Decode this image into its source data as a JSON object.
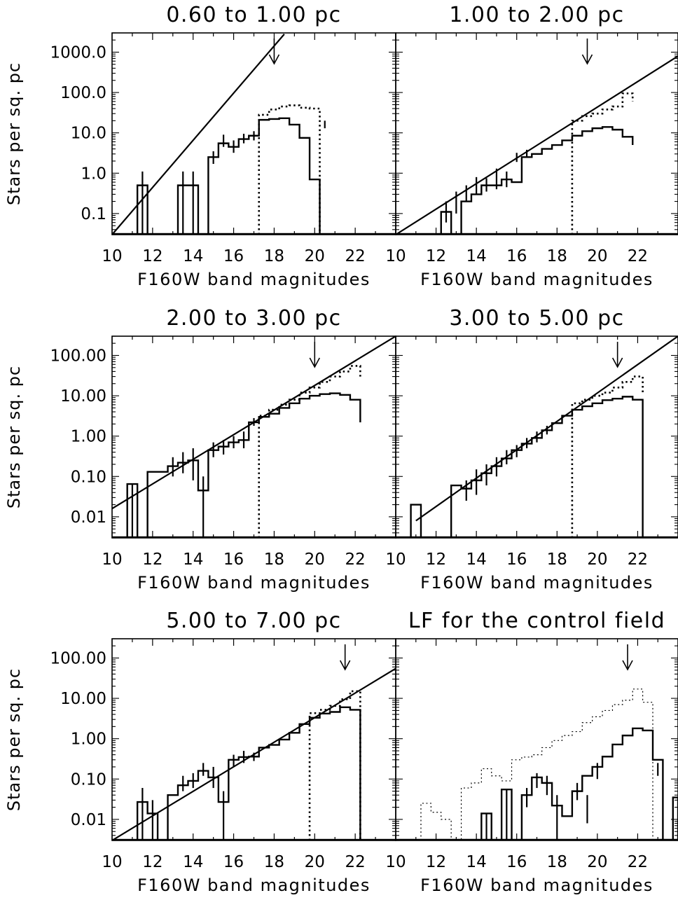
{
  "figure": {
    "ylabel": "Stars per sq. pc",
    "xlabel": "F160W band magnitudes"
  },
  "chart_data": [
    {
      "type": "line",
      "panel": "top-left",
      "title": "0.60 to 1.00 pc",
      "xlabel": "F160W band magnitudes",
      "ylabel": "Stars per sq. pc",
      "xlim": [
        10,
        24
      ],
      "ylim": [
        0.03,
        3000
      ],
      "yscale": "log",
      "xticks": [
        10,
        12,
        14,
        16,
        18,
        20,
        22
      ],
      "yticks": [
        0.1,
        1,
        10,
        100,
        1000
      ],
      "ytick_labels": [
        "0.1",
        "1.0",
        "10.0",
        "100.0",
        "1000.0"
      ],
      "arrow_mag": 18.0,
      "series": [
        {
          "style": "solid-histogram",
          "edges": [
            11.25,
            11.75,
            13.25,
            13.75,
            14.25,
            14.75,
            15.25,
            15.75,
            16.25,
            16.75,
            17.25,
            17.75,
            18.25,
            18.75,
            19.25,
            19.75,
            20.25
          ],
          "values": [
            0.5,
            0.03,
            0.5,
            0.5,
            0.03,
            2.5,
            5.5,
            4.5,
            7.0,
            8.5,
            21,
            22,
            23,
            16,
            7.5,
            0.7
          ]
        },
        {
          "style": "dotted-histogram",
          "edges": [
            17.25,
            17.75,
            18.25,
            18.75,
            19.25,
            19.75,
            20.25
          ],
          "values": [
            28,
            38,
            45,
            48,
            42,
            40
          ]
        },
        {
          "style": "fit-line",
          "x": [
            10,
            18.5
          ],
          "y": [
            0.03,
            2800
          ]
        }
      ],
      "error_bars": [
        {
          "x": 11.5,
          "y_low": 0.03,
          "y_high": 1.1
        },
        {
          "x": 13.5,
          "y_low": 0.03,
          "y_high": 1.1
        },
        {
          "x": 14.0,
          "y_low": 0.03,
          "y_high": 1.1
        },
        {
          "x": 15.0,
          "y_low": 1.7,
          "y_high": 3.5
        },
        {
          "x": 15.5,
          "y_low": 4.5,
          "y_high": 9.0
        },
        {
          "x": 16.0,
          "y_low": 3.2,
          "y_high": 6.5
        },
        {
          "x": 16.5,
          "y_low": 5.5,
          "y_high": 9.5
        },
        {
          "x": 17.0,
          "y_low": 6.5,
          "y_high": 11
        },
        {
          "x": 20.5,
          "y_low": 13,
          "y_high": 20
        }
      ]
    },
    {
      "type": "line",
      "panel": "top-right",
      "title": "1.00 to 2.00 pc",
      "xlabel": "F160W band magnitudes",
      "ylabel": "",
      "xlim": [
        10,
        24
      ],
      "ylim": [
        0.03,
        3000
      ],
      "yscale": "log",
      "xticks": [
        10,
        12,
        14,
        16,
        18,
        20,
        22
      ],
      "yticks": [],
      "ytick_labels": [],
      "arrow_mag": 19.5,
      "series": [
        {
          "style": "solid-histogram",
          "edges": [
            12.25,
            12.75,
            13.25,
            13.75,
            14.25,
            14.75,
            15.25,
            15.75,
            16.25,
            16.75,
            17.25,
            17.75,
            18.25,
            18.75,
            19.25,
            19.75,
            20.25,
            20.75,
            21.25,
            21.75
          ],
          "values": [
            0.11,
            0.03,
            0.2,
            0.3,
            0.5,
            0.5,
            0.7,
            0.6,
            2.5,
            3.0,
            4.0,
            5.0,
            6.5,
            8.5,
            11,
            13,
            14,
            12,
            8,
            5
          ]
        },
        {
          "style": "dotted-histogram",
          "edges": [
            18.75,
            19.25,
            19.75,
            20.25,
            20.75,
            21.25,
            21.75
          ],
          "values": [
            20,
            26,
            30,
            38,
            45,
            95,
            60
          ]
        },
        {
          "style": "fit-line",
          "x": [
            10,
            24
          ],
          "y": [
            0.03,
            800
          ]
        }
      ],
      "error_bars": [
        {
          "x": 12.5,
          "y_low": 0.06,
          "y_high": 0.2
        },
        {
          "x": 13.0,
          "y_low": 0.1,
          "y_high": 0.35
        },
        {
          "x": 13.5,
          "y_low": 0.2,
          "y_high": 0.5
        },
        {
          "x": 14.0,
          "y_low": 0.3,
          "y_high": 0.8
        },
        {
          "x": 14.5,
          "y_low": 0.35,
          "y_high": 0.75
        },
        {
          "x": 15.0,
          "y_low": 0.4,
          "y_high": 1.3
        },
        {
          "x": 15.5,
          "y_low": 0.45,
          "y_high": 1.1
        },
        {
          "x": 16.0,
          "y_low": 1.9,
          "y_high": 3.2
        },
        {
          "x": 16.5,
          "y_low": 2.4,
          "y_high": 3.8
        }
      ]
    },
    {
      "type": "line",
      "panel": "middle-left",
      "title": "2.00 to 3.00 pc",
      "xlabel": "F160W band magnitudes",
      "ylabel": "Stars per sq. pc",
      "xlim": [
        10,
        24
      ],
      "ylim": [
        0.003,
        300
      ],
      "yscale": "log",
      "xticks": [
        10,
        12,
        14,
        16,
        18,
        20,
        22
      ],
      "yticks": [
        0.01,
        0.1,
        1,
        10,
        100
      ],
      "ytick_labels": [
        "0.01",
        "0.10",
        "1.00",
        "10.00",
        "100.00"
      ],
      "arrow_mag": 20.0,
      "series": [
        {
          "style": "solid-histogram",
          "edges": [
            10.75,
            11.25,
            11.75,
            12.25,
            12.75,
            13.25,
            13.75,
            14.25,
            14.75,
            15.25,
            15.75,
            16.25,
            16.75,
            17.25,
            17.75,
            18.25,
            18.75,
            19.25,
            19.75,
            20.25,
            20.75,
            21.25,
            21.75,
            22.25
          ],
          "values": [
            0.065,
            0.003,
            0.13,
            0.13,
            0.18,
            0.22,
            0.25,
            0.045,
            0.45,
            0.55,
            0.7,
            0.8,
            2.2,
            3.0,
            3.6,
            5.0,
            6.5,
            8.5,
            10,
            11,
            11.5,
            10.5,
            8,
            2.2
          ]
        },
        {
          "style": "dotted-histogram",
          "edges": [
            17.25,
            17.75,
            18.25,
            18.75,
            19.25,
            19.75,
            20.25,
            20.75,
            21.25,
            21.75,
            22.25
          ],
          "values": [
            3.2,
            4.5,
            6,
            8,
            12,
            16,
            22,
            30,
            40,
            55,
            30
          ]
        },
        {
          "style": "fit-line",
          "x": [
            10,
            24
          ],
          "y": [
            0.016,
            300
          ]
        }
      ],
      "error_bars": [
        {
          "x": 11.0,
          "y_low": 0.003,
          "y_high": 0.065
        },
        {
          "x": 13.0,
          "y_low": 0.1,
          "y_high": 0.3
        },
        {
          "x": 13.5,
          "y_low": 0.12,
          "y_high": 0.4
        },
        {
          "x": 14.0,
          "y_low": 0.08,
          "y_high": 0.5
        },
        {
          "x": 14.5,
          "y_low": 0.003,
          "y_high": 0.1
        },
        {
          "x": 15.0,
          "y_low": 0.3,
          "y_high": 0.7
        },
        {
          "x": 15.5,
          "y_low": 0.35,
          "y_high": 0.8
        },
        {
          "x": 16.0,
          "y_low": 0.5,
          "y_high": 1.0
        },
        {
          "x": 16.5,
          "y_low": 0.5,
          "y_high": 1.3
        },
        {
          "x": 17.0,
          "y_low": 1.8,
          "y_high": 2.8
        }
      ]
    },
    {
      "type": "line",
      "panel": "middle-right",
      "title": "3.00 to 5.00 pc",
      "xlabel": "F160W band magnitudes",
      "ylabel": "",
      "xlim": [
        10,
        24
      ],
      "ylim": [
        0.003,
        300
      ],
      "yscale": "log",
      "xticks": [
        10,
        12,
        14,
        16,
        18,
        20,
        22
      ],
      "yticks": [],
      "ytick_labels": [],
      "arrow_mag": 21.0,
      "series": [
        {
          "style": "solid-histogram",
          "edges": [
            10.75,
            11.25,
            12.75,
            13.25,
            13.75,
            14.25,
            14.75,
            15.25,
            15.75,
            16.25,
            16.75,
            17.25,
            17.75,
            18.25,
            18.75,
            19.25,
            19.75,
            20.25,
            20.75,
            21.25,
            21.75,
            22.25
          ],
          "values": [
            0.02,
            0.003,
            0.06,
            0.05,
            0.08,
            0.12,
            0.18,
            0.28,
            0.45,
            0.65,
            0.9,
            1.4,
            2.1,
            3.2,
            4.5,
            5.5,
            6.5,
            7.8,
            8.5,
            9.5,
            8.0
          ]
        },
        {
          "style": "dotted-histogram",
          "edges": [
            18.75,
            19.25,
            19.75,
            20.25,
            20.75,
            21.25,
            21.75,
            22.25
          ],
          "values": [
            6.5,
            8,
            10,
            12,
            16,
            22,
            30,
            12
          ]
        },
        {
          "style": "fit-line",
          "x": [
            11,
            24
          ],
          "y": [
            0.008,
            400
          ]
        }
      ],
      "error_bars": [
        {
          "x": 13.5,
          "y_low": 0.025,
          "y_high": 0.08
        },
        {
          "x": 14.0,
          "y_low": 0.035,
          "y_high": 0.15
        },
        {
          "x": 14.5,
          "y_low": 0.06,
          "y_high": 0.2
        },
        {
          "x": 15.0,
          "y_low": 0.1,
          "y_high": 0.3
        },
        {
          "x": 15.5,
          "y_low": 0.2,
          "y_high": 0.45
        },
        {
          "x": 16.0,
          "y_low": 0.3,
          "y_high": 0.6
        },
        {
          "x": 16.5,
          "y_low": 0.5,
          "y_high": 0.9
        },
        {
          "x": 17.0,
          "y_low": 0.7,
          "y_high": 1.3
        },
        {
          "x": 17.5,
          "y_low": 1.1,
          "y_high": 1.8
        }
      ]
    },
    {
      "type": "line",
      "panel": "bottom-left",
      "title": "5.00 to 7.00 pc",
      "xlabel": "F160W band magnitudes",
      "ylabel": "Stars per sq. pc",
      "xlim": [
        10,
        24
      ],
      "ylim": [
        0.003,
        300
      ],
      "yscale": "log",
      "xticks": [
        10,
        12,
        14,
        16,
        18,
        20,
        22
      ],
      "yticks": [
        0.01,
        0.1,
        1,
        10,
        100
      ],
      "ytick_labels": [
        "0.01",
        "0.10",
        "1.00",
        "10.00",
        "100.00"
      ],
      "arrow_mag": 21.5,
      "series": [
        {
          "style": "solid-histogram",
          "edges": [
            11.25,
            11.75,
            12.25,
            12.75,
            13.25,
            13.75,
            14.25,
            14.75,
            15.25,
            15.75,
            16.25,
            16.75,
            17.25,
            17.75,
            18.25,
            18.75,
            19.25,
            19.75,
            20.25,
            20.75,
            21.25,
            21.75,
            22.25
          ],
          "values": [
            0.027,
            0.014,
            0.003,
            0.04,
            0.07,
            0.09,
            0.16,
            0.11,
            0.027,
            0.3,
            0.35,
            0.36,
            0.6,
            0.7,
            0.95,
            1.4,
            2.3,
            3.3,
            4.2,
            4.6,
            6.0,
            5.2
          ]
        },
        {
          "style": "dotted-histogram",
          "edges": [
            19.75,
            20.25,
            20.75,
            21.25,
            21.75,
            22.25
          ],
          "values": [
            4.3,
            5.2,
            6.5,
            9.5,
            15
          ]
        },
        {
          "style": "fit-line",
          "x": [
            10,
            24
          ],
          "y": [
            0.003,
            55
          ]
        }
      ],
      "error_bars": [
        {
          "x": 11.5,
          "y_low": 0.003,
          "y_high": 0.06
        },
        {
          "x": 12.0,
          "y_low": 0.003,
          "y_high": 0.03
        },
        {
          "x": 13.5,
          "y_low": 0.05,
          "y_high": 0.12
        },
        {
          "x": 14.0,
          "y_low": 0.06,
          "y_high": 0.14
        },
        {
          "x": 14.5,
          "y_low": 0.12,
          "y_high": 0.25
        },
        {
          "x": 15.0,
          "y_low": 0.06,
          "y_high": 0.2
        },
        {
          "x": 15.5,
          "y_low": 0.003,
          "y_high": 0.05
        },
        {
          "x": 16.0,
          "y_low": 0.2,
          "y_high": 0.4
        },
        {
          "x": 16.5,
          "y_low": 0.25,
          "y_high": 0.5
        },
        {
          "x": 17.0,
          "y_low": 0.28,
          "y_high": 0.45
        }
      ]
    },
    {
      "type": "line",
      "panel": "bottom-right",
      "title": "LF for the control field",
      "xlabel": "F160W band magnitudes",
      "ylabel": "",
      "xlim": [
        10,
        24
      ],
      "ylim": [
        0.003,
        300
      ],
      "yscale": "log",
      "xticks": [
        10,
        12,
        14,
        16,
        18,
        20,
        22
      ],
      "yticks": [],
      "ytick_labels": [],
      "arrow_mag": 21.5,
      "series": [
        {
          "style": "dotted-histogram-thin",
          "edges": [
            11.25,
            11.75,
            12.25,
            12.75,
            13.25,
            13.75,
            14.25,
            14.75,
            15.25,
            15.75,
            16.25,
            16.75,
            17.25,
            17.75,
            18.25,
            18.75,
            19.25,
            19.75,
            20.25,
            20.75,
            21.25,
            21.75,
            22.25,
            22.75
          ],
          "values": [
            0.025,
            0.015,
            0.01,
            0.003,
            0.06,
            0.08,
            0.18,
            0.12,
            0.09,
            0.3,
            0.35,
            0.4,
            0.6,
            0.9,
            1.2,
            1.5,
            2.5,
            3.5,
            5,
            7,
            9,
            17,
            8
          ]
        },
        {
          "style": "solid-histogram",
          "edges": [
            14.25,
            14.75,
            15.25,
            15.75,
            16.25,
            16.75,
            17.25,
            17.75,
            18.25,
            18.75,
            19.25,
            19.75,
            20.25,
            20.75,
            21.25,
            21.75,
            22.25,
            22.75,
            23.25
          ],
          "values": [
            0.014,
            0.003,
            0.055,
            0.003,
            0.04,
            0.11,
            0.08,
            0.022,
            0.012,
            0.05,
            0.12,
            0.2,
            0.36,
            0.72,
            1.2,
            1.8,
            1.6,
            0.3
          ]
        },
        {
          "style": "solid-histogram",
          "edges": [
            23.75,
            24.0
          ],
          "values": [
            0.035
          ]
        }
      ],
      "error_bars": [
        {
          "x": 14.5,
          "y_low": 0.003,
          "y_high": 0.014
        },
        {
          "x": 15.5,
          "y_low": 0.003,
          "y_high": 0.055
        },
        {
          "x": 16.5,
          "y_low": 0.02,
          "y_high": 0.06
        },
        {
          "x": 17.0,
          "y_low": 0.06,
          "y_high": 0.14
        },
        {
          "x": 17.5,
          "y_low": 0.04,
          "y_high": 0.12
        },
        {
          "x": 18.0,
          "y_low": 0.003,
          "y_high": 0.04
        },
        {
          "x": 19.0,
          "y_low": 0.03,
          "y_high": 0.08
        },
        {
          "x": 19.5,
          "y_low": 0.008,
          "y_high": 0.04
        },
        {
          "x": 20.0,
          "y_low": 0.1,
          "y_high": 0.25
        },
        {
          "x": 23.0,
          "y_low": 0.12,
          "y_high": 0.25
        }
      ]
    }
  ]
}
